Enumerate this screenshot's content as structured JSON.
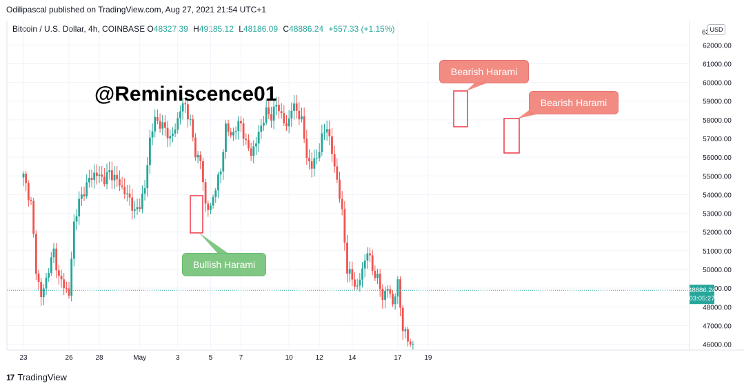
{
  "header": {
    "published": "Odilipascal published on TradingView.com, Aug 27, 2021 21:54 UTC+1"
  },
  "legend": {
    "symbol": "Bitcoin / U.S. Dollar, 4h, COINBASE",
    "o_label": "O",
    "o_value": "48327.39",
    "h_label": "H",
    "h_value": "49185.12",
    "l_label": "L",
    "l_value": "48186.09",
    "c_label": "C",
    "c_value": "48886.24",
    "change": "+557.33 (+1.15%)"
  },
  "watermark": "@Reminiscence01",
  "currency_button": "USD",
  "brand": {
    "logo": "17",
    "name": "TradingView"
  },
  "colors": {
    "up": "#26a69a",
    "down": "#ef5350",
    "grid": "#f0f3fa",
    "price_line": "#26a69a"
  },
  "chart_data": {
    "type": "candlestick",
    "timeframe": "4h",
    "ylim": [
      45800,
      63300
    ],
    "y_ticks": [
      46000,
      47000,
      48000,
      49000,
      50000,
      51000,
      52000,
      53000,
      54000,
      55000,
      56000,
      57000,
      58000,
      59000,
      60000,
      61000,
      62000
    ],
    "y_tick_labels": [
      "46000.00",
      "47000.00",
      "48000.00",
      "49000.00",
      "50000.00",
      "51000.00",
      "52000.00",
      "53000.00",
      "54000.00",
      "55000.00",
      "56000.00",
      "57000.00",
      "58000.00",
      "59000.00",
      "60000.00",
      "61000.00",
      "62000.00"
    ],
    "y_top_partial_label": "63",
    "x_ticks": [
      "23",
      "26",
      "28",
      "May",
      "3",
      "5",
      "7",
      "10",
      "12",
      "14",
      "17",
      "19"
    ],
    "x_tick_index": [
      0,
      18,
      30,
      46,
      61,
      74,
      86,
      105,
      117,
      130,
      148,
      160
    ],
    "last_price": {
      "value": 48886.24,
      "label": "48886.24",
      "countdown": "03:05:27"
    },
    "path": [
      [
        0,
        55000
      ],
      [
        3,
        53500
      ],
      [
        5,
        50000
      ],
      [
        7,
        48500
      ],
      [
        9,
        49500
      ],
      [
        12,
        51000
      ],
      [
        14,
        49500
      ],
      [
        16,
        49200
      ],
      [
        18,
        48600
      ],
      [
        20,
        52500
      ],
      [
        22,
        53600
      ],
      [
        24,
        54200
      ],
      [
        26,
        54800
      ],
      [
        28,
        55100
      ],
      [
        30,
        55000
      ],
      [
        32,
        54800
      ],
      [
        34,
        55200
      ],
      [
        36,
        54900
      ],
      [
        38,
        54600
      ],
      [
        40,
        54100
      ],
      [
        42,
        53800
      ],
      [
        44,
        53000
      ],
      [
        46,
        53500
      ],
      [
        48,
        54300
      ],
      [
        50,
        57000
      ],
      [
        52,
        58000
      ],
      [
        54,
        57800
      ],
      [
        56,
        57500
      ],
      [
        58,
        57000
      ],
      [
        60,
        57500
      ],
      [
        62,
        58600
      ],
      [
        64,
        58800
      ],
      [
        66,
        57800
      ],
      [
        68,
        56200
      ],
      [
        70,
        55800
      ],
      [
        72,
        53500
      ],
      [
        74,
        53200
      ],
      [
        76,
        54500
      ],
      [
        78,
        55200
      ],
      [
        80,
        57700
      ],
      [
        82,
        57100
      ],
      [
        84,
        57600
      ],
      [
        86,
        57800
      ],
      [
        88,
        56700
      ],
      [
        90,
        56200
      ],
      [
        92,
        56800
      ],
      [
        94,
        57700
      ],
      [
        96,
        58400
      ],
      [
        98,
        58200
      ],
      [
        100,
        58800
      ],
      [
        102,
        58300
      ],
      [
        104,
        57500
      ],
      [
        106,
        58700
      ],
      [
        108,
        58500
      ],
      [
        110,
        58000
      ],
      [
        112,
        56000
      ],
      [
        114,
        55500
      ],
      [
        116,
        56000
      ],
      [
        118,
        57000
      ],
      [
        120,
        57700
      ],
      [
        122,
        56200
      ],
      [
        124,
        54800
      ],
      [
        126,
        53000
      ],
      [
        128,
        50000
      ],
      [
        130,
        49500
      ],
      [
        132,
        49000
      ],
      [
        134,
        50000
      ],
      [
        136,
        51000
      ],
      [
        138,
        50000
      ],
      [
        140,
        49500
      ],
      [
        142,
        48500
      ],
      [
        144,
        49000
      ],
      [
        146,
        48200
      ],
      [
        148,
        49200
      ],
      [
        150,
        46900
      ],
      [
        152,
        46200
      ],
      [
        154,
        45950
      ]
    ],
    "annotations": [
      {
        "label": "Bullish Harami",
        "pattern": "bullish"
      },
      {
        "label": "Bearish Harami",
        "pattern": "bearish"
      },
      {
        "label": "Bearish Harami",
        "pattern": "bearish"
      }
    ]
  }
}
